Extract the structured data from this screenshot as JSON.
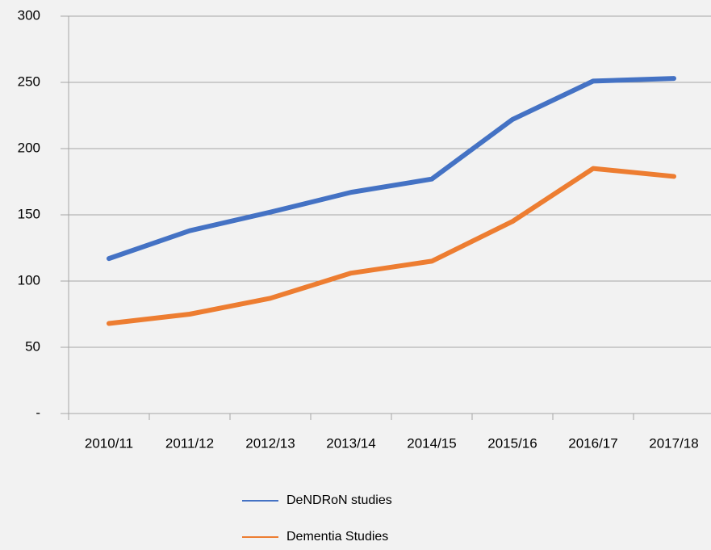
{
  "chart_data": {
    "type": "line",
    "categories": [
      "2010/11",
      "2011/12",
      "2012/13",
      "2013/14",
      "2014/15",
      "2015/16",
      "2016/17",
      "2017/18"
    ],
    "series": [
      {
        "name": "DeNDRoN studies",
        "color": "#4472c4",
        "values": [
          117,
          138,
          152,
          167,
          177,
          222,
          251,
          253
        ]
      },
      {
        "name": "Dementia Studies",
        "color": "#ed7d31",
        "values": [
          68,
          75,
          87,
          106,
          115,
          145,
          185,
          179
        ]
      }
    ],
    "ylim": [
      0,
      300
    ],
    "yticks": [
      {
        "value": 0,
        "label": "-"
      },
      50,
      100,
      150,
      200,
      250,
      300
    ],
    "grid": true,
    "legend": "bottom"
  }
}
